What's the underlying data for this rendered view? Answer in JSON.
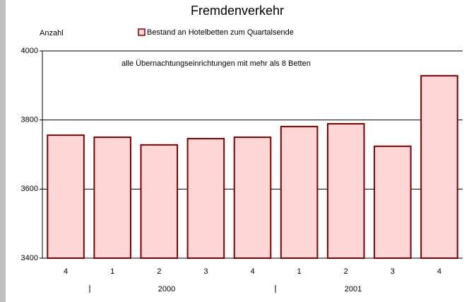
{
  "chart_data": {
    "type": "bar",
    "title": "Fremdenverkehr",
    "y_label": "Anzahl",
    "annotation": "alle Übernachtungseinrichtungen mit mehr als 8 Betten",
    "categories": [
      "4",
      "1",
      "2",
      "3",
      "4",
      "1",
      "2",
      "3",
      "4"
    ],
    "group_labels": [
      "2000",
      "2001"
    ],
    "series": [
      {
        "name": "Bestand an Hotelbetten zum Quartalsende",
        "color": "#ffd6d6",
        "values": [
          3756,
          3750,
          3728,
          3746,
          3750,
          3781,
          3789,
          3724,
          3928
        ]
      }
    ],
    "ylim": [
      3400,
      4000
    ],
    "yticks": [
      3400,
      3600,
      3800,
      4000
    ],
    "grid": true
  }
}
